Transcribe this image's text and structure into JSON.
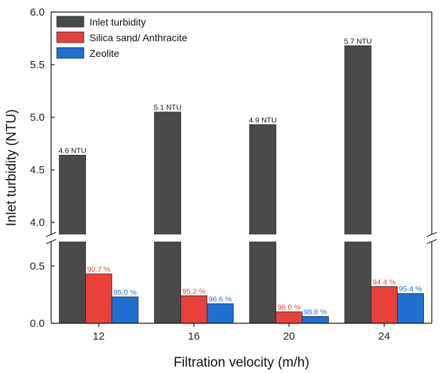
{
  "chart_data": {
    "type": "bar",
    "xlabel": "Filtration velocity (m/h)",
    "ylabel": "Inlet turbidity (NTU)",
    "categories": [
      "12",
      "16",
      "20",
      "24"
    ],
    "y_upper_range": [
      3.9,
      6.0
    ],
    "y_lower_range": [
      0.0,
      0.7
    ],
    "y_upper_ticks": [
      "4.0",
      "4.5",
      "5.0",
      "5.5",
      "6.0"
    ],
    "y_lower_ticks": [
      "0.0",
      "0.5"
    ],
    "axis_break": true,
    "legend_position": "top-left",
    "series": [
      {
        "name": "Inlet turbidity",
        "color": "#4a4a4a",
        "values": [
          4.64,
          5.05,
          4.93,
          5.68
        ],
        "labels": [
          "4.6 NTU",
          "5.1 NTU",
          "4.9 NTU",
          "5.7 NTU"
        ],
        "label_color": "#111111"
      },
      {
        "name": "Silica sand/ Anthracite",
        "color": "#e8413c",
        "values": [
          0.43,
          0.24,
          0.1,
          0.32
        ],
        "labels": [
          "90.7 %",
          "95.2 %",
          "98.0 %",
          "94.4 %"
        ],
        "label_color": "#e8413c"
      },
      {
        "name": "Zeolite",
        "color": "#1f6fd1",
        "values": [
          0.23,
          0.17,
          0.06,
          0.26
        ],
        "labels": [
          "95.0 %",
          "96.6 %",
          "98.8 %",
          "95.4 %"
        ],
        "label_color": "#1f6fd1"
      }
    ]
  }
}
